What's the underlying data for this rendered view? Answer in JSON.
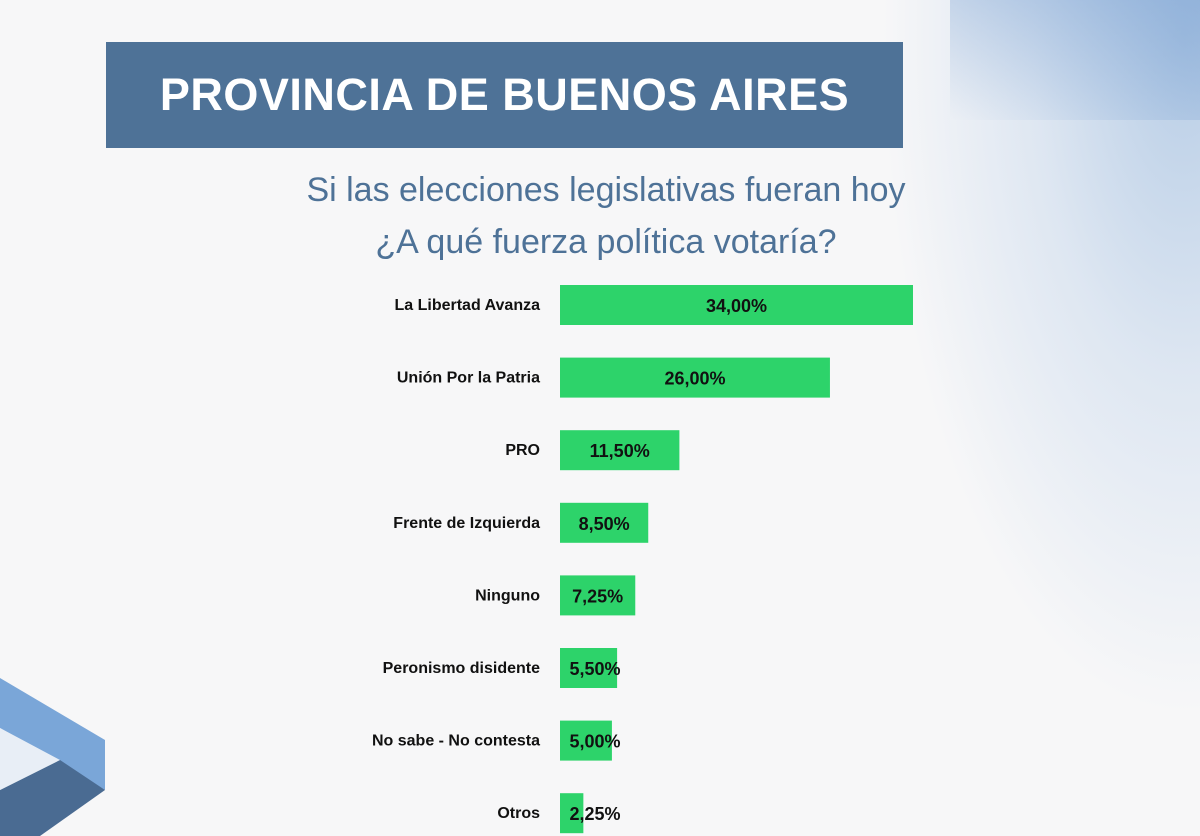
{
  "header": {
    "title": "PROVINCIA DE BUENOS AIRES",
    "subtitle_line1": "Si las elecciones legislativas fueran hoy",
    "subtitle_line2": "¿A qué fuerza política votaría?"
  },
  "colors": {
    "header_bg": "#4e7297",
    "bar": "#2dd36a",
    "accent_orange": "#f5b433",
    "accent_blue": "#7aa6d8"
  },
  "chart_data": {
    "type": "bar",
    "orientation": "horizontal",
    "title": "Si las elecciones legislativas fueran hoy ¿A qué fuerza política votaría?",
    "categories": [
      "La Libertad Avanza",
      "Unión Por la Patria",
      "PRO",
      "Frente de Izquierda",
      "Ninguno",
      "Peronismo disidente",
      "No sabe - No contesta",
      "Otros"
    ],
    "values": [
      34.0,
      26.0,
      11.5,
      8.5,
      7.25,
      5.5,
      5.0,
      2.25
    ],
    "value_labels": [
      "34,00%",
      "26,00%",
      "11,50%",
      "8,50%",
      "7,25%",
      "5,50%",
      "5,00%",
      "2,25%"
    ],
    "xlabel": "",
    "ylabel": "",
    "grid": false,
    "legend": "none"
  }
}
